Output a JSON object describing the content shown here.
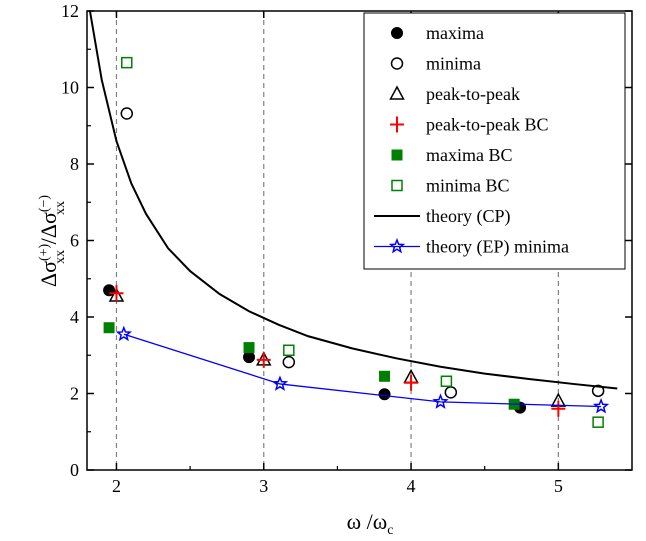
{
  "chart_data": {
    "type": "scatter",
    "xlabel": {
      "main": "ω",
      "sep": " /",
      "denom": "ω",
      "denom_sub": "c"
    },
    "ylabel": {
      "num": "Δσ",
      "num_sup": "(+)",
      "num_sub": "xx",
      "sep": " /",
      "den": "Δσ",
      "den_sup": "(−)",
      "den_sub": "xx"
    },
    "xlim": [
      1.8,
      5.5
    ],
    "ylim": [
      0,
      12
    ],
    "xticks": [
      "2",
      "3",
      "4",
      "5"
    ],
    "yticks": [
      "0",
      "2",
      "4",
      "6",
      "8",
      "10",
      "12"
    ],
    "x_grid_dashed": [
      2,
      3,
      4,
      5
    ],
    "series": [
      {
        "name": "maxima",
        "marker": "filled-circle",
        "color": "#000000",
        "x": [
          1.95,
          2.9,
          3.82,
          4.74
        ],
        "y": [
          4.7,
          2.95,
          1.98,
          1.63
        ]
      },
      {
        "name": "minima",
        "marker": "open-circle",
        "color": "#000000",
        "x": [
          2.07,
          3.17,
          4.27,
          5.27
        ],
        "y": [
          9.32,
          2.82,
          2.03,
          2.07
        ]
      },
      {
        "name": "peak-to-peak",
        "marker": "open-triangle",
        "color": "#000000",
        "x": [
          2.0,
          3.0,
          4.0,
          5.0
        ],
        "y": [
          4.55,
          2.88,
          2.42,
          1.8
        ]
      },
      {
        "name": "peak-to-peak BC",
        "marker": "plus",
        "color": "#ff0000",
        "x": [
          2.0,
          3.0,
          4.0,
          5.0
        ],
        "y": [
          4.62,
          2.88,
          2.28,
          1.6
        ]
      },
      {
        "name": "maxima BC",
        "marker": "filled-square",
        "color": "#008000",
        "x": [
          1.95,
          2.9,
          3.82,
          4.7
        ],
        "y": [
          3.72,
          3.2,
          2.45,
          1.72
        ]
      },
      {
        "name": "minima BC",
        "marker": "open-square",
        "color": "#008000",
        "x": [
          2.07,
          3.17,
          4.24,
          5.27
        ],
        "y": [
          10.65,
          3.13,
          2.32,
          1.25
        ]
      },
      {
        "name": "theory (CP)",
        "marker": "line",
        "color": "#000000",
        "x": [
          1.82,
          1.9,
          2.0,
          2.1,
          2.2,
          2.35,
          2.5,
          2.7,
          2.9,
          3.1,
          3.3,
          3.6,
          3.9,
          4.2,
          4.5,
          4.8,
          5.1,
          5.4
        ],
        "y": [
          12.0,
          10.2,
          8.6,
          7.5,
          6.7,
          5.8,
          5.2,
          4.6,
          4.15,
          3.8,
          3.5,
          3.18,
          2.92,
          2.7,
          2.52,
          2.38,
          2.25,
          2.13
        ]
      },
      {
        "name": "theory (EP) minima",
        "marker": "open-star-line",
        "color": "#0000ff",
        "x": [
          2.05,
          3.11,
          4.2,
          5.29
        ],
        "y": [
          3.55,
          2.25,
          1.78,
          1.66
        ]
      }
    ]
  }
}
